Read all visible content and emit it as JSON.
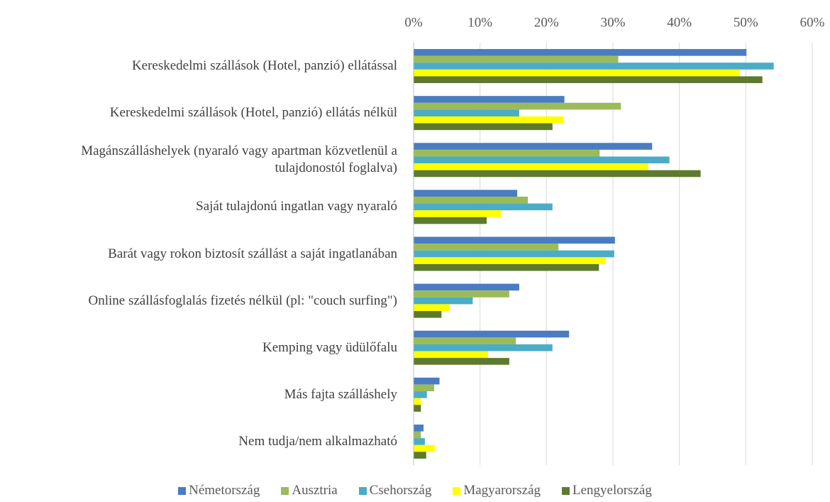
{
  "chart_data": {
    "type": "barh",
    "categories": [
      "Kereskedelmi szállások (Hotel, panzió) ellátással",
      "Kereskedelmi szállások (Hotel, panzió) ellátás nélkül",
      "Magánszálláshelyek (nyaraló vagy apartman közvetlenül a tulajdonostól foglalva)",
      "Saját tulajdonú ingatlan vagy nyaraló",
      "Barát vagy rokon biztosít szállást a saját ingatlanában",
      "Online szállásfoglalás fizetés nélkül (pl: \"couch surfing\")",
      "Kemping vagy üdülőfalu",
      "Más fajta szálláshely",
      "Nem tudja/nem alkalmazható"
    ],
    "series": [
      {
        "name": "Németország",
        "color": "#4a7cc1",
        "values": [
          50.1,
          22.7,
          35.9,
          15.6,
          30.3,
          15.9,
          23.4,
          3.9,
          1.5
        ]
      },
      {
        "name": "Ausztria",
        "color": "#9bbb59",
        "values": [
          30.8,
          31.2,
          28.0,
          17.2,
          21.8,
          14.4,
          15.4,
          3.1,
          1.1
        ]
      },
      {
        "name": "Csehország",
        "color": "#4bacc6",
        "values": [
          54.2,
          15.9,
          38.5,
          20.9,
          30.2,
          8.9,
          20.9,
          2.0,
          1.7
        ]
      },
      {
        "name": "Magyarország",
        "color": "#ffff00",
        "values": [
          49.1,
          22.6,
          35.3,
          13.2,
          28.9,
          5.4,
          11.2,
          1.1,
          3.2
        ]
      },
      {
        "name": "Lengyelország",
        "color": "#5e7a2e",
        "values": [
          52.5,
          20.9,
          43.2,
          11.0,
          27.9,
          4.2,
          14.4,
          1.1,
          1.9
        ]
      }
    ],
    "xlim": [
      0,
      60
    ],
    "xticks": [
      {
        "value": 0,
        "label": "0%"
      },
      {
        "value": 10,
        "label": "10%"
      },
      {
        "value": 20,
        "label": "20%"
      },
      {
        "value": 30,
        "label": "30%"
      },
      {
        "value": 40,
        "label": "40%"
      },
      {
        "value": 50,
        "label": "50%"
      },
      {
        "value": 60,
        "label": "60%"
      }
    ],
    "grid": true,
    "legend": "bottom"
  }
}
